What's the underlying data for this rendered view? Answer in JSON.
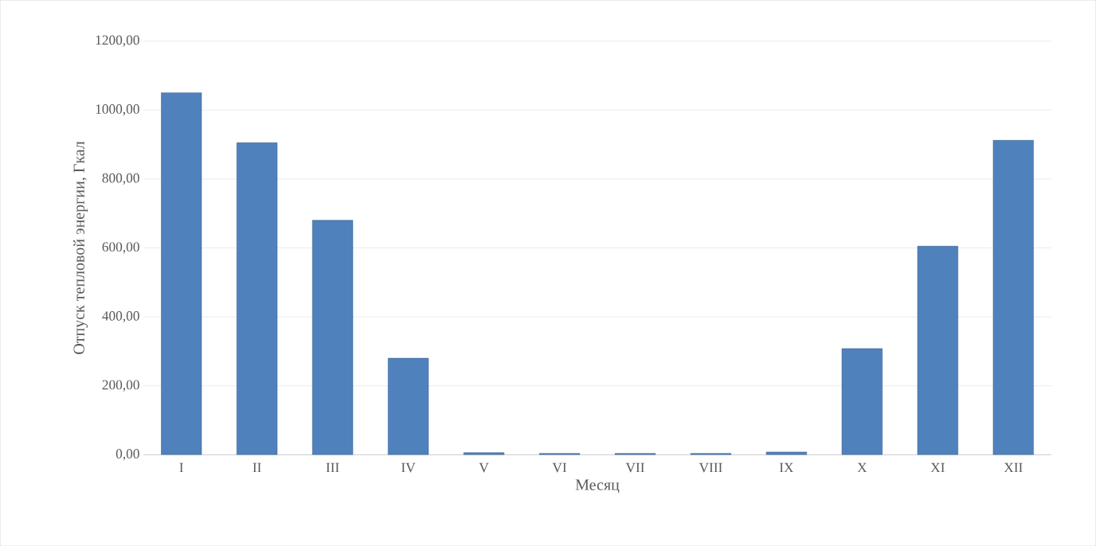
{
  "chart_data": {
    "type": "bar",
    "xlabel": "Месяц",
    "ylabel": "Отпуск тепловой энергии, Гкал",
    "categories": [
      "I",
      "II",
      "III",
      "IV",
      "V",
      "VI",
      "VII",
      "VIII",
      "IX",
      "X",
      "XI",
      "XII"
    ],
    "values": [
      1050,
      905,
      680,
      280,
      6,
      4,
      4,
      4,
      8,
      308,
      605,
      912
    ],
    "color": "#4f81bd",
    "ylim": [
      0,
      1200
    ],
    "yticks": [
      {
        "value": 0,
        "label": "0,00"
      },
      {
        "value": 200,
        "label": "200,00"
      },
      {
        "value": 400,
        "label": "400,00"
      },
      {
        "value": 600,
        "label": "600,00"
      },
      {
        "value": 800,
        "label": "800,00"
      },
      {
        "value": 1000,
        "label": "1000,00"
      },
      {
        "value": 1200,
        "label": "1200,00"
      }
    ],
    "grid": "y"
  }
}
